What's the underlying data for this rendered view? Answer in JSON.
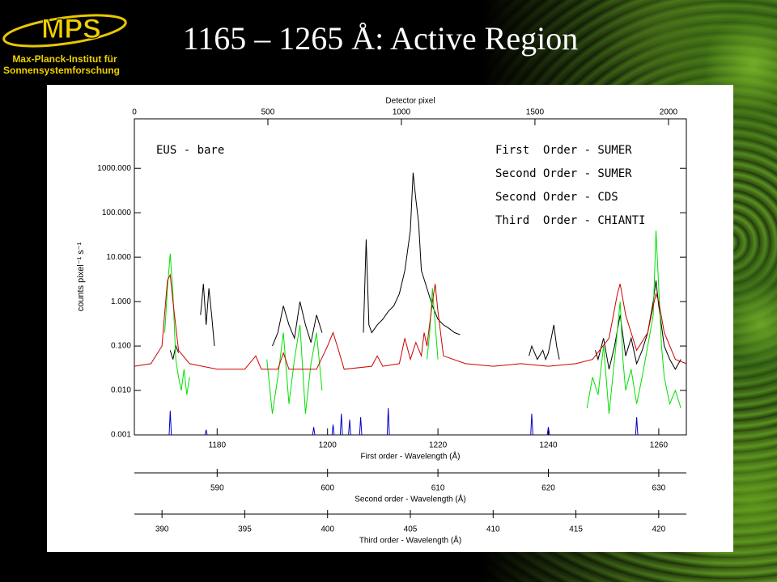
{
  "slide": {
    "title": "1165 – 1265 Å: Active Region",
    "logo": {
      "abbr": "MPS",
      "line1": "Max-Planck-Institut für",
      "line2": "Sonnensystemforschung"
    }
  },
  "chart_data": {
    "type": "line",
    "log_y": true,
    "grid": false,
    "annotation": "EUS - bare",
    "ylabel": "counts pixel⁻¹ s⁻¹",
    "ylim": [
      0.001,
      13000
    ],
    "yticks": [
      0.001,
      {
        "value": 0.01,
        "label": "0.010"
      },
      {
        "value": 0.1,
        "label": "0.100"
      },
      {
        "value": 1,
        "label": "1.000"
      },
      {
        "value": 10,
        "label": "10.000"
      },
      {
        "value": 100,
        "label": "100.000"
      },
      {
        "value": 1000,
        "label": "1000.000"
      }
    ],
    "xlabel": "First order - Wavelength (Å)",
    "xlim": [
      1165,
      1265
    ],
    "xticks": [
      1180,
      1200,
      1220,
      1240,
      1260
    ],
    "top_axis": {
      "label": "Detector pixel",
      "xlim": [
        0,
        2067
      ],
      "xticks": [
        0,
        500,
        1000,
        1500,
        2000
      ]
    },
    "extra_axes": [
      {
        "label": "Second order - Wavelength (Å)",
        "xlim": [
          582.5,
          632.5
        ],
        "xticks": [
          590,
          600,
          610,
          620,
          630
        ]
      },
      {
        "label": "Third order - Wavelength (Å)",
        "xlim": [
          388.33,
          421.67
        ],
        "xticks": [
          390,
          395,
          400,
          405,
          410,
          415,
          420
        ]
      }
    ],
    "series": [
      {
        "name": "First  Order - SUMER",
        "color": "#000000",
        "x": [
          1171.5,
          1172,
          1172.5,
          1173,
          null,
          1177,
          1177.5,
          1178,
          1178.5,
          1179,
          1179.5,
          null,
          1190,
          1191,
          1192,
          1193,
          1194,
          1195,
          1196,
          1197,
          1198,
          1199,
          null,
          1206.5,
          1207,
          1207.5,
          1208,
          1209,
          1210,
          1211,
          1212,
          1213,
          1214,
          1215,
          1215.5,
          1216,
          1216.5,
          1217,
          1218,
          1219,
          1220,
          1221,
          1222,
          1223,
          1224,
          null,
          1236.5,
          1237,
          1238,
          1239,
          1239.5,
          1240,
          1241,
          1241.5,
          1242,
          null,
          1248.5,
          1249,
          1250,
          1251,
          1252,
          1253,
          1254,
          1255,
          1256,
          1257,
          1258,
          1259,
          1259.5,
          1260,
          1261,
          1262,
          1263,
          1264
        ],
        "values": [
          0.08,
          0.05,
          0.1,
          0.07,
          null,
          0.5,
          2.5,
          0.3,
          2.0,
          0.5,
          0.1,
          null,
          0.1,
          0.2,
          0.8,
          0.3,
          0.15,
          1.0,
          0.3,
          0.12,
          0.5,
          0.2,
          null,
          0.2,
          25,
          0.3,
          0.2,
          0.3,
          0.4,
          0.6,
          0.8,
          1.5,
          5,
          40,
          800,
          200,
          60,
          5,
          2,
          0.8,
          0.4,
          0.3,
          0.25,
          0.2,
          0.18,
          null,
          0.06,
          0.1,
          0.05,
          0.08,
          0.05,
          0.07,
          0.3,
          0.1,
          0.05,
          null,
          0.08,
          0.05,
          0.15,
          0.03,
          0.1,
          0.5,
          0.06,
          0.15,
          0.04,
          0.08,
          0.2,
          1.0,
          3,
          0.8,
          0.1,
          0.05,
          0.03,
          0.05
        ]
      },
      {
        "name": "Second Order - SUMER",
        "color": "#00e000",
        "x": [
          1170.5,
          1171,
          1171.5,
          1172,
          1172.5,
          1173,
          1173.5,
          1174,
          1174.5,
          1175,
          null,
          1189,
          1190,
          1191,
          1192,
          1193,
          1194,
          1195,
          1196,
          1197,
          1198,
          1199,
          null,
          1218,
          1218.5,
          1219,
          1219.5,
          1220,
          null,
          1247,
          1248,
          1249,
          1250,
          1251,
          1252,
          1253,
          1253.5,
          1254,
          1255,
          1256,
          1257,
          1258,
          1259,
          1259.5,
          1260,
          1260.5,
          1261,
          1262,
          1263,
          1264
        ],
        "values": [
          0.2,
          2,
          12,
          1.5,
          0.05,
          0.02,
          0.01,
          0.03,
          0.008,
          0.02,
          null,
          0.05,
          0.003,
          0.02,
          0.2,
          0.005,
          0.05,
          0.3,
          0.003,
          0.04,
          0.2,
          0.01,
          null,
          0.05,
          0.2,
          2,
          0.3,
          0.05,
          null,
          0.004,
          0.02,
          0.008,
          0.1,
          0.003,
          0.05,
          1,
          0.05,
          0.01,
          0.03,
          0.005,
          0.02,
          0.1,
          0.5,
          40,
          2,
          0.1,
          0.02,
          0.005,
          0.01,
          0.004
        ]
      },
      {
        "name": "Second Order - CDS",
        "color": "#cc0000",
        "x": [
          1165,
          1168,
          1170,
          1171,
          1171.5,
          1172,
          1173,
          1175,
          1180,
          1185,
          1187,
          1188,
          1191,
          1192,
          1193,
          1198,
          1200,
          1201,
          1202,
          1203,
          1208,
          1209,
          1210,
          1213,
          1214,
          1215,
          1216,
          1217,
          1217.5,
          1218,
          1219,
          1219.5,
          1220,
          1221,
          1225,
          1230,
          1235,
          1240,
          1245,
          1248,
          1251,
          1252.5,
          1253,
          1254,
          1256,
          1258,
          1259,
          1259.5,
          1260,
          1261,
          1263,
          1265
        ],
        "values": [
          0.035,
          0.04,
          0.1,
          3,
          4,
          1,
          0.08,
          0.04,
          0.03,
          0.03,
          0.06,
          0.03,
          0.03,
          0.07,
          0.03,
          0.03,
          0.1,
          0.2,
          0.08,
          0.03,
          0.035,
          0.06,
          0.035,
          0.04,
          0.15,
          0.05,
          0.12,
          0.06,
          0.2,
          0.1,
          1,
          2.5,
          0.6,
          0.06,
          0.04,
          0.035,
          0.04,
          0.035,
          0.04,
          0.05,
          0.15,
          1.5,
          2.5,
          0.5,
          0.08,
          0.2,
          0.8,
          1.5,
          1.0,
          0.2,
          0.05,
          0.04
        ]
      },
      {
        "name": "Third  Order - CHIANTI",
        "color": "#0000cc",
        "x": [
          1171.3,
          1171.5,
          1171.7,
          null,
          1177.8,
          1178,
          1178.2,
          null,
          1197.3,
          1197.5,
          1197.7,
          null,
          1200.8,
          1201,
          1201.2,
          null,
          1202.3,
          1202.5,
          1202.7,
          null,
          1203.8,
          1204,
          1204.2,
          null,
          1205.8,
          1206,
          1206.2,
          null,
          1210.8,
          1211,
          1211.2,
          null,
          1236.8,
          1237,
          1237.2,
          null,
          1239.8,
          1240,
          1240.2,
          null,
          1255.8,
          1256,
          1256.2
        ],
        "values": [
          0.001,
          0.0035,
          0.001,
          null,
          0.001,
          0.0013,
          0.001,
          null,
          0.001,
          0.0015,
          0.001,
          null,
          0.001,
          0.0017,
          0.001,
          null,
          0.001,
          0.003,
          0.001,
          null,
          0.001,
          0.0022,
          0.001,
          null,
          0.001,
          0.0025,
          0.001,
          null,
          0.001,
          0.004,
          0.001,
          null,
          0.001,
          0.003,
          0.001,
          null,
          0.001,
          0.0015,
          0.001,
          null,
          0.001,
          0.0025,
          0.001
        ]
      }
    ]
  }
}
